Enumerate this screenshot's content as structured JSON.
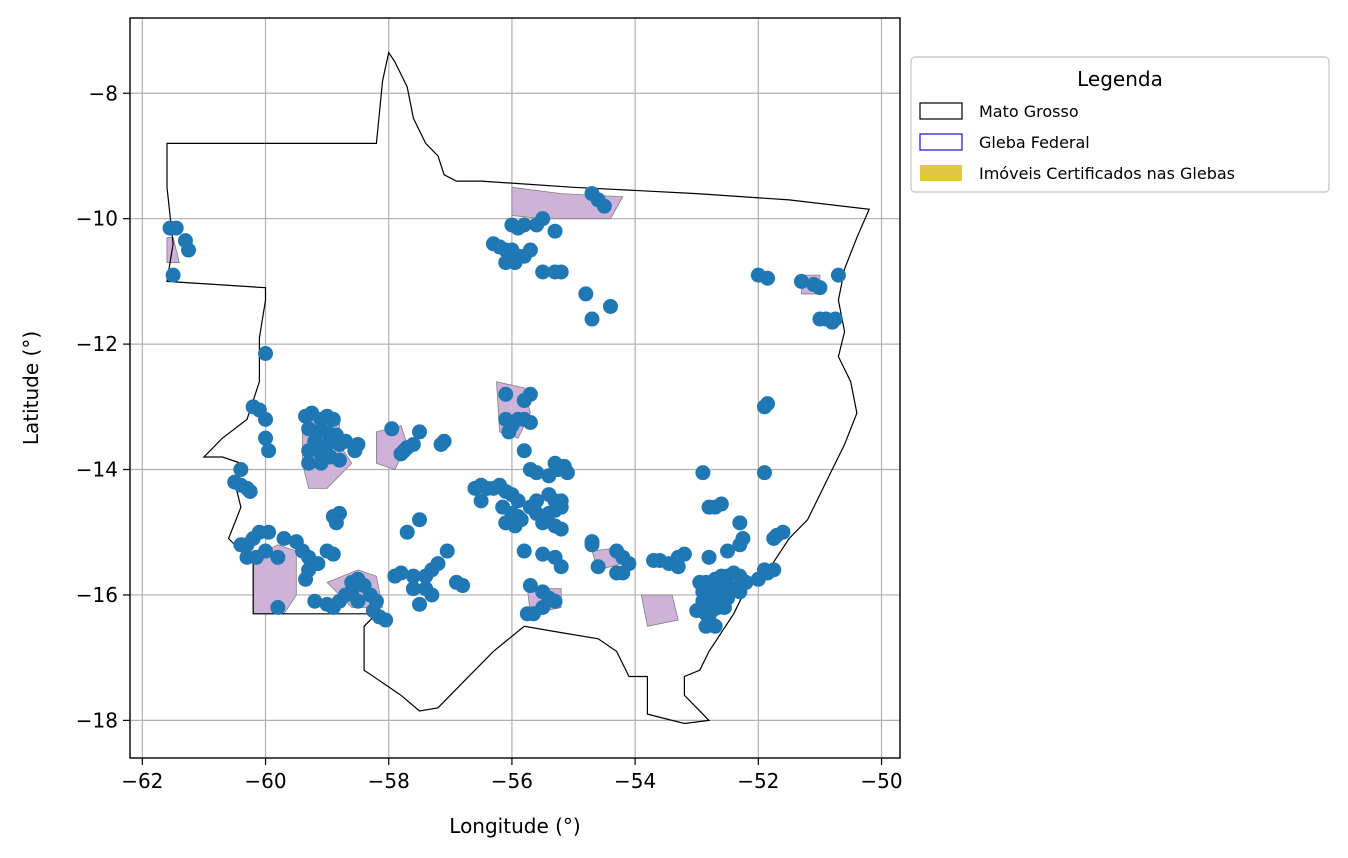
{
  "colors": {
    "state_outline": "#000000",
    "gleba_fill": "#cfb2d8",
    "gleba_edge": "#808080",
    "point": "#1f77b4",
    "grid": "#b0b0b0",
    "legend_gleba": "#1010cc",
    "legend_imoveis": "#e3c544"
  },
  "chart_data": {
    "type": "map",
    "xlabel": "Longitude (°)",
    "ylabel": "Latitude (°)",
    "xlim": [
      -62.2,
      -49.7
    ],
    "ylim": [
      -18.6,
      -6.8
    ],
    "grid": true,
    "x_ticks": [
      -62,
      -60,
      -58,
      -56,
      -54,
      -52,
      -50
    ],
    "x_tick_labels": [
      "−62",
      "−60",
      "−58",
      "−56",
      "−54",
      "−52",
      "−50"
    ],
    "y_ticks": [
      -8,
      -10,
      -12,
      -14,
      -16,
      -18
    ],
    "y_tick_labels": [
      "−8",
      "−10",
      "−12",
      "−14",
      "−16",
      "−18"
    ],
    "legend": {
      "title": "Legenda",
      "position": "outside-right-top",
      "entries": [
        {
          "label": "Mato Grosso",
          "style": "outline-black"
        },
        {
          "label": "Gleba Federal",
          "style": "outline-blue"
        },
        {
          "label": "Imóveis Certificados nas Glebas",
          "style": "fill-yellow"
        }
      ]
    },
    "boundary": [
      [
        -58.2,
        -8.8
      ],
      [
        -58.15,
        -8.3
      ],
      [
        -58.1,
        -7.8
      ],
      [
        -58.0,
        -7.35
      ],
      [
        -57.9,
        -7.5
      ],
      [
        -57.7,
        -7.9
      ],
      [
        -57.6,
        -8.4
      ],
      [
        -57.4,
        -8.8
      ],
      [
        -57.2,
        -9.0
      ],
      [
        -57.1,
        -9.3
      ],
      [
        -56.9,
        -9.4
      ],
      [
        -56.5,
        -9.4
      ],
      [
        -55.0,
        -9.5
      ],
      [
        -53.0,
        -9.6
      ],
      [
        -51.5,
        -9.7
      ],
      [
        -50.2,
        -9.85
      ],
      [
        -50.4,
        -10.3
      ],
      [
        -50.6,
        -10.8
      ],
      [
        -50.7,
        -11.3
      ],
      [
        -50.6,
        -11.8
      ],
      [
        -50.7,
        -12.2
      ],
      [
        -50.5,
        -12.6
      ],
      [
        -50.4,
        -13.1
      ],
      [
        -50.6,
        -13.6
      ],
      [
        -50.8,
        -14.0
      ],
      [
        -51.0,
        -14.4
      ],
      [
        -51.2,
        -14.8
      ],
      [
        -51.5,
        -15.1
      ],
      [
        -51.7,
        -15.4
      ],
      [
        -51.9,
        -15.7
      ],
      [
        -52.2,
        -15.9
      ],
      [
        -52.4,
        -16.3
      ],
      [
        -52.6,
        -16.6
      ],
      [
        -52.8,
        -16.9
      ],
      [
        -52.95,
        -17.2
      ],
      [
        -53.2,
        -17.3
      ],
      [
        -53.2,
        -17.6
      ],
      [
        -53.0,
        -17.8
      ],
      [
        -52.8,
        -18.0
      ],
      [
        -53.2,
        -18.05
      ],
      [
        -53.8,
        -17.9
      ],
      [
        -53.8,
        -17.3
      ],
      [
        -54.1,
        -17.3
      ],
      [
        -54.3,
        -16.9
      ],
      [
        -54.6,
        -16.7
      ],
      [
        -55.2,
        -16.6
      ],
      [
        -55.8,
        -16.5
      ],
      [
        -56.3,
        -16.9
      ],
      [
        -56.8,
        -17.4
      ],
      [
        -57.2,
        -17.8
      ],
      [
        -57.5,
        -17.85
      ],
      [
        -57.8,
        -17.6
      ],
      [
        -58.1,
        -17.4
      ],
      [
        -58.4,
        -17.2
      ],
      [
        -58.4,
        -16.5
      ],
      [
        -58.2,
        -16.3
      ],
      [
        -60.2,
        -16.3
      ],
      [
        -60.2,
        -15.5
      ],
      [
        -60.6,
        -15.1
      ],
      [
        -60.4,
        -14.6
      ],
      [
        -60.5,
        -14.2
      ],
      [
        -60.4,
        -13.9
      ],
      [
        -60.7,
        -13.8
      ],
      [
        -61.0,
        -13.8
      ],
      [
        -60.7,
        -13.5
      ],
      [
        -60.3,
        -13.2
      ],
      [
        -60.1,
        -12.6
      ],
      [
        -60.1,
        -11.9
      ],
      [
        -60.0,
        -11.3
      ],
      [
        -60.0,
        -11.1
      ],
      [
        -61.6,
        -11.0
      ],
      [
        -61.5,
        -10.4
      ],
      [
        -61.6,
        -9.5
      ],
      [
        -61.6,
        -8.8
      ],
      [
        -58.2,
        -8.8
      ]
    ],
    "glebas": [
      [
        [
          -56.0,
          -9.5
        ],
        [
          -55.2,
          -9.6
        ],
        [
          -54.2,
          -9.65
        ],
        [
          -54.4,
          -10.0
        ],
        [
          -55.5,
          -10.0
        ],
        [
          -56.0,
          -9.95
        ]
      ],
      [
        [
          -61.6,
          -10.3
        ],
        [
          -61.5,
          -10.3
        ],
        [
          -61.4,
          -10.7
        ],
        [
          -61.6,
          -10.7
        ]
      ],
      [
        [
          -59.4,
          -13.3
        ],
        [
          -59.0,
          -13.1
        ],
        [
          -58.8,
          -13.2
        ],
        [
          -58.8,
          -13.6
        ],
        [
          -58.6,
          -13.9
        ],
        [
          -59.0,
          -14.3
        ],
        [
          -59.3,
          -14.3
        ],
        [
          -59.4,
          -13.9
        ]
      ],
      [
        [
          -58.2,
          -13.4
        ],
        [
          -57.8,
          -13.3
        ],
        [
          -57.7,
          -13.6
        ],
        [
          -57.9,
          -14.0
        ],
        [
          -58.2,
          -13.9
        ]
      ],
      [
        [
          -56.25,
          -12.6
        ],
        [
          -55.8,
          -12.7
        ],
        [
          -55.7,
          -13.1
        ],
        [
          -55.9,
          -13.5
        ],
        [
          -56.2,
          -13.4
        ]
      ],
      [
        [
          -60.2,
          -15.4
        ],
        [
          -59.8,
          -15.2
        ],
        [
          -59.5,
          -15.3
        ],
        [
          -59.5,
          -16.0
        ],
        [
          -59.7,
          -16.3
        ],
        [
          -60.2,
          -16.3
        ]
      ],
      [
        [
          -59.0,
          -15.8
        ],
        [
          -58.5,
          -15.6
        ],
        [
          -58.2,
          -15.7
        ],
        [
          -58.1,
          -16.2
        ],
        [
          -58.6,
          -16.2
        ]
      ],
      [
        [
          -54.7,
          -15.3
        ],
        [
          -54.3,
          -15.25
        ],
        [
          -54.2,
          -15.5
        ],
        [
          -54.6,
          -15.6
        ]
      ],
      [
        [
          -53.9,
          -16.0
        ],
        [
          -53.4,
          -16.0
        ],
        [
          -53.3,
          -16.4
        ],
        [
          -53.8,
          -16.5
        ]
      ],
      [
        [
          -55.75,
          -15.9
        ],
        [
          -55.2,
          -15.9
        ],
        [
          -55.2,
          -16.2
        ],
        [
          -55.7,
          -16.3
        ]
      ],
      [
        [
          -51.3,
          -10.9
        ],
        [
          -51.0,
          -10.9
        ],
        [
          -51.0,
          -11.2
        ],
        [
          -51.3,
          -11.2
        ]
      ]
    ],
    "points": [
      [
        -61.55,
        -10.15
      ],
      [
        -61.45,
        -10.15
      ],
      [
        -61.3,
        -10.35
      ],
      [
        -61.25,
        -10.5
      ],
      [
        -61.5,
        -10.9
      ],
      [
        -55.5,
        -10.0
      ],
      [
        -54.7,
        -9.6
      ],
      [
        -54.6,
        -9.7
      ],
      [
        -54.5,
        -9.8
      ],
      [
        -55.6,
        -10.1
      ],
      [
        -55.8,
        -10.1
      ],
      [
        -55.9,
        -10.15
      ],
      [
        -56.0,
        -10.1
      ],
      [
        -56.3,
        -10.4
      ],
      [
        -56.2,
        -10.45
      ],
      [
        -56.1,
        -10.5
      ],
      [
        -56.0,
        -10.5
      ],
      [
        -55.9,
        -10.6
      ],
      [
        -56.1,
        -10.7
      ],
      [
        -55.95,
        -10.7
      ],
      [
        -55.8,
        -10.6
      ],
      [
        -55.7,
        -10.5
      ],
      [
        -55.3,
        -10.2
      ],
      [
        -55.5,
        -10.85
      ],
      [
        -55.3,
        -10.85
      ],
      [
        -55.2,
        -10.85
      ],
      [
        -54.8,
        -11.2
      ],
      [
        -54.4,
        -11.4
      ],
      [
        -54.7,
        -11.6
      ],
      [
        -52.0,
        -10.9
      ],
      [
        -51.85,
        -10.95
      ],
      [
        -50.7,
        -10.9
      ],
      [
        -51.3,
        -11.0
      ],
      [
        -51.1,
        -11.05
      ],
      [
        -51.0,
        -11.1
      ],
      [
        -51.0,
        -11.6
      ],
      [
        -50.9,
        -11.6
      ],
      [
        -50.8,
        -11.65
      ],
      [
        -50.75,
        -11.6
      ],
      [
        -60.0,
        -12.15
      ],
      [
        -56.1,
        -12.8
      ],
      [
        -55.8,
        -12.9
      ],
      [
        -55.7,
        -12.8
      ],
      [
        -56.1,
        -13.2
      ],
      [
        -56.0,
        -13.3
      ],
      [
        -55.9,
        -13.2
      ],
      [
        -55.8,
        -13.2
      ],
      [
        -55.7,
        -13.25
      ],
      [
        -56.05,
        -13.4
      ],
      [
        -55.8,
        -13.7
      ],
      [
        -51.85,
        -12.95
      ],
      [
        -51.9,
        -13.0
      ],
      [
        -51.9,
        -14.05
      ],
      [
        -60.2,
        -13.0
      ],
      [
        -60.1,
        -13.05
      ],
      [
        -60.0,
        -13.2
      ],
      [
        -60.0,
        -13.5
      ],
      [
        -59.95,
        -13.7
      ],
      [
        -59.35,
        -13.15
      ],
      [
        -59.25,
        -13.1
      ],
      [
        -59.1,
        -13.2
      ],
      [
        -59.0,
        -13.15
      ],
      [
        -58.9,
        -13.2
      ],
      [
        -59.3,
        -13.35
      ],
      [
        -59.15,
        -13.4
      ],
      [
        -59.0,
        -13.4
      ],
      [
        -58.85,
        -13.45
      ],
      [
        -59.2,
        -13.55
      ],
      [
        -59.0,
        -13.6
      ],
      [
        -58.8,
        -13.6
      ],
      [
        -58.7,
        -13.55
      ],
      [
        -59.3,
        -13.7
      ],
      [
        -59.1,
        -13.75
      ],
      [
        -58.95,
        -13.8
      ],
      [
        -58.8,
        -13.85
      ],
      [
        -58.55,
        -13.7
      ],
      [
        -58.5,
        -13.6
      ],
      [
        -59.3,
        -13.9
      ],
      [
        -59.1,
        -13.9
      ],
      [
        -57.95,
        -13.35
      ],
      [
        -57.5,
        -13.4
      ],
      [
        -57.6,
        -13.6
      ],
      [
        -57.7,
        -13.65
      ],
      [
        -57.75,
        -13.7
      ],
      [
        -57.8,
        -13.75
      ],
      [
        -57.1,
        -13.55
      ],
      [
        -57.15,
        -13.6
      ],
      [
        -60.4,
        -14.0
      ],
      [
        -60.5,
        -14.2
      ],
      [
        -60.3,
        -14.3
      ],
      [
        -60.25,
        -14.35
      ],
      [
        -60.4,
        -14.25
      ],
      [
        -56.6,
        -14.3
      ],
      [
        -56.5,
        -14.25
      ],
      [
        -56.4,
        -14.3
      ],
      [
        -56.3,
        -14.3
      ],
      [
        -56.2,
        -14.25
      ],
      [
        -56.5,
        -14.5
      ],
      [
        -56.1,
        -14.35
      ],
      [
        -56.0,
        -14.4
      ],
      [
        -55.9,
        -14.5
      ],
      [
        -56.15,
        -14.6
      ],
      [
        -56.0,
        -14.7
      ],
      [
        -55.9,
        -14.75
      ],
      [
        -55.7,
        -14.6
      ],
      [
        -55.6,
        -14.5
      ],
      [
        -55.4,
        -14.4
      ],
      [
        -55.3,
        -14.5
      ],
      [
        -55.2,
        -14.5
      ],
      [
        -55.6,
        -14.7
      ],
      [
        -55.4,
        -14.7
      ],
      [
        -55.3,
        -14.65
      ],
      [
        -55.2,
        -14.6
      ],
      [
        -55.5,
        -14.85
      ],
      [
        -55.3,
        -14.9
      ],
      [
        -55.2,
        -14.95
      ],
      [
        -55.7,
        -14.0
      ],
      [
        -55.6,
        -14.05
      ],
      [
        -55.4,
        -14.1
      ],
      [
        -55.25,
        -14.0
      ],
      [
        -55.15,
        -13.95
      ],
      [
        -55.1,
        -14.05
      ],
      [
        -55.3,
        -13.9
      ],
      [
        -56.1,
        -14.85
      ],
      [
        -55.95,
        -14.9
      ],
      [
        -55.85,
        -14.8
      ],
      [
        -52.9,
        -14.05
      ],
      [
        -52.8,
        -14.6
      ],
      [
        -52.7,
        -14.6
      ],
      [
        -52.6,
        -14.55
      ],
      [
        -58.8,
        -14.7
      ],
      [
        -58.9,
        -14.75
      ],
      [
        -58.85,
        -14.85
      ],
      [
        -57.5,
        -14.8
      ],
      [
        -57.7,
        -15.0
      ],
      [
        -60.1,
        -15.0
      ],
      [
        -59.95,
        -15.0
      ],
      [
        -60.2,
        -15.1
      ],
      [
        -60.3,
        -15.2
      ],
      [
        -60.4,
        -15.2
      ],
      [
        -60.0,
        -15.3
      ],
      [
        -60.15,
        -15.4
      ],
      [
        -60.3,
        -15.4
      ],
      [
        -59.8,
        -15.4
      ],
      [
        -59.7,
        -15.1
      ],
      [
        -59.5,
        -15.15
      ],
      [
        -59.4,
        -15.3
      ],
      [
        -59.3,
        -15.4
      ],
      [
        -59.15,
        -15.5
      ],
      [
        -59.0,
        -15.3
      ],
      [
        -58.9,
        -15.35
      ],
      [
        -57.05,
        -15.3
      ],
      [
        -57.2,
        -15.5
      ],
      [
        -57.3,
        -15.6
      ],
      [
        -57.4,
        -15.7
      ],
      [
        -57.6,
        -15.7
      ],
      [
        -57.8,
        -15.65
      ],
      [
        -57.9,
        -15.7
      ],
      [
        -55.8,
        -15.3
      ],
      [
        -55.5,
        -15.35
      ],
      [
        -55.3,
        -15.4
      ],
      [
        -55.2,
        -15.55
      ],
      [
        -54.7,
        -15.15
      ],
      [
        -54.7,
        -15.2
      ],
      [
        -54.6,
        -15.55
      ],
      [
        -54.3,
        -15.3
      ],
      [
        -54.2,
        -15.4
      ],
      [
        -54.1,
        -15.5
      ],
      [
        -54.2,
        -15.65
      ],
      [
        -54.3,
        -15.65
      ],
      [
        -53.7,
        -15.45
      ],
      [
        -53.6,
        -15.45
      ],
      [
        -53.45,
        -15.5
      ],
      [
        -53.3,
        -15.4
      ],
      [
        -53.2,
        -15.35
      ],
      [
        -53.3,
        -15.55
      ],
      [
        -52.3,
        -14.85
      ],
      [
        -52.25,
        -15.1
      ],
      [
        -52.3,
        -15.2
      ],
      [
        -52.5,
        -15.3
      ],
      [
        -52.8,
        -15.4
      ],
      [
        -51.6,
        -15.0
      ],
      [
        -51.7,
        -15.05
      ],
      [
        -51.75,
        -15.1
      ],
      [
        -51.9,
        -15.6
      ],
      [
        -51.85,
        -15.65
      ],
      [
        -51.75,
        -15.6
      ],
      [
        -52.0,
        -15.75
      ],
      [
        -52.95,
        -15.8
      ],
      [
        -52.85,
        -15.8
      ],
      [
        -52.7,
        -15.75
      ],
      [
        -52.6,
        -15.7
      ],
      [
        -52.5,
        -15.7
      ],
      [
        -52.4,
        -15.65
      ],
      [
        -52.3,
        -15.7
      ],
      [
        -52.2,
        -15.8
      ],
      [
        -52.9,
        -15.95
      ],
      [
        -52.8,
        -15.95
      ],
      [
        -52.7,
        -15.9
      ],
      [
        -52.6,
        -15.9
      ],
      [
        -52.5,
        -15.9
      ],
      [
        -52.4,
        -15.9
      ],
      [
        -52.3,
        -15.95
      ],
      [
        -52.9,
        -16.1
      ],
      [
        -52.8,
        -16.1
      ],
      [
        -52.7,
        -16.1
      ],
      [
        -52.6,
        -16.1
      ],
      [
        -52.5,
        -16.05
      ],
      [
        -53.0,
        -16.25
      ],
      [
        -52.85,
        -16.3
      ],
      [
        -52.75,
        -16.25
      ],
      [
        -52.65,
        -16.2
      ],
      [
        -52.55,
        -16.2
      ],
      [
        -52.8,
        -16.4
      ],
      [
        -52.7,
        -16.5
      ],
      [
        -52.85,
        -16.5
      ],
      [
        -59.8,
        -16.2
      ],
      [
        -59.3,
        -15.6
      ],
      [
        -59.35,
        -15.75
      ],
      [
        -59.2,
        -16.1
      ],
      [
        -59.0,
        -16.15
      ],
      [
        -58.9,
        -16.2
      ],
      [
        -58.8,
        -16.1
      ],
      [
        -58.7,
        -16.0
      ],
      [
        -58.6,
        -15.95
      ],
      [
        -58.5,
        -16.1
      ],
      [
        -58.6,
        -15.8
      ],
      [
        -58.5,
        -15.75
      ],
      [
        -58.4,
        -15.85
      ],
      [
        -58.3,
        -16.0
      ],
      [
        -58.2,
        -16.1
      ],
      [
        -58.15,
        -16.35
      ],
      [
        -58.05,
        -16.4
      ],
      [
        -58.25,
        -16.25
      ],
      [
        -57.3,
        -16.0
      ],
      [
        -57.5,
        -16.15
      ],
      [
        -57.4,
        -15.9
      ],
      [
        -57.6,
        -15.9
      ],
      [
        -56.9,
        -15.8
      ],
      [
        -56.8,
        -15.85
      ],
      [
        -55.7,
        -15.85
      ],
      [
        -55.5,
        -15.95
      ],
      [
        -55.4,
        -16.05
      ],
      [
        -55.3,
        -16.1
      ],
      [
        -55.5,
        -16.2
      ],
      [
        -55.65,
        -16.3
      ],
      [
        -55.75,
        -16.3
      ]
    ]
  }
}
